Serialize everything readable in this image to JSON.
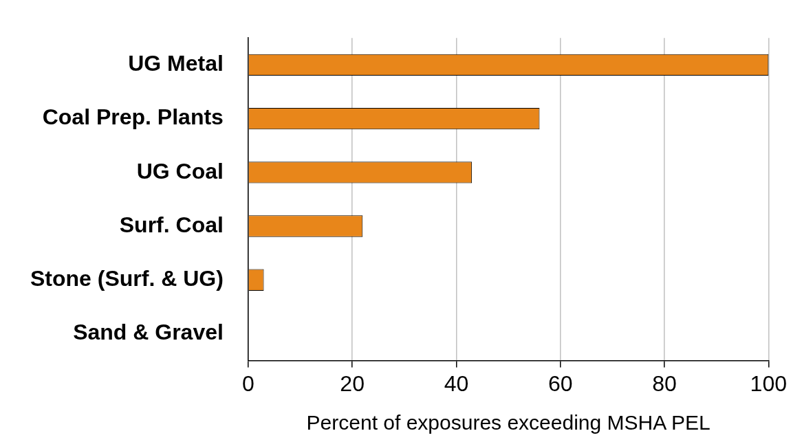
{
  "chart_data": {
    "type": "bar",
    "orientation": "horizontal",
    "xlabel": "Percent of exposures exceeding MSHA PEL",
    "categories": [
      "UG Metal",
      "Coal Prep. Plants",
      "UG Coal",
      "Surf. Coal",
      "Stone (Surf. & UG)",
      "Sand & Gravel"
    ],
    "values": [
      100,
      56,
      43,
      22,
      3,
      0
    ],
    "color": "#e8861a",
    "xlim": [
      0,
      100
    ],
    "xticks": [
      0,
      20,
      40,
      60,
      80,
      100
    ],
    "grid": "x"
  }
}
